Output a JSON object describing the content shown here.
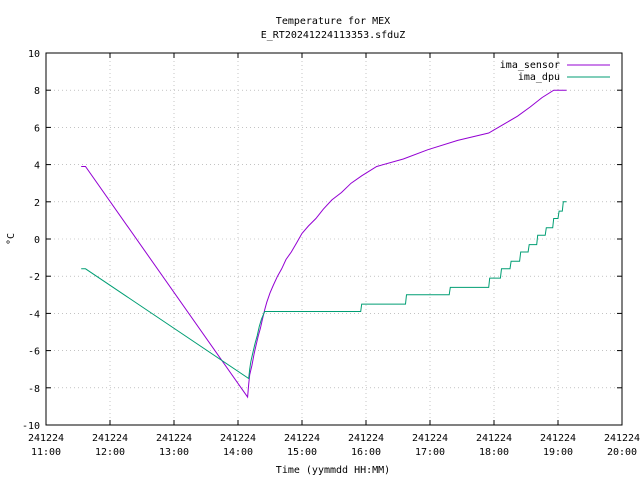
{
  "chart_data": {
    "type": "line",
    "title": "Temperature for MEX",
    "subtitle": "E_RT20241224113353.sfduZ",
    "xlabel": "Time (yymmdd HH:MM)",
    "ylabel": "°C",
    "xlim": [
      "2024-12-24T11:00",
      "2024-12-24T20:00"
    ],
    "ylim": [
      -10,
      10
    ],
    "yticks": [
      -10,
      -8,
      -6,
      -4,
      -2,
      0,
      2,
      4,
      6,
      8,
      10
    ],
    "xticks": [
      {
        "date": "241224",
        "time": "11:00"
      },
      {
        "date": "241224",
        "time": "12:00"
      },
      {
        "date": "241224",
        "time": "13:00"
      },
      {
        "date": "241224",
        "time": "14:00"
      },
      {
        "date": "241224",
        "time": "15:00"
      },
      {
        "date": "241224",
        "time": "16:00"
      },
      {
        "date": "241224",
        "time": "17:00"
      },
      {
        "date": "241224",
        "time": "18:00"
      },
      {
        "date": "241224",
        "time": "19:00"
      },
      {
        "date": "241224",
        "time": "20:00"
      }
    ],
    "grid": true,
    "legend_position": "top-right",
    "series": [
      {
        "name": "ima_sensor",
        "color": "#9400d3",
        "points": [
          [
            "11:33",
            3.9
          ],
          [
            "11:37",
            3.9
          ],
          [
            "14:09",
            -8.5
          ],
          [
            "14:10",
            -7.8
          ],
          [
            "14:11",
            -7.3
          ],
          [
            "14:13",
            -6.8
          ],
          [
            "14:15",
            -6.2
          ],
          [
            "14:17",
            -5.7
          ],
          [
            "14:19",
            -5.2
          ],
          [
            "14:21",
            -4.8
          ],
          [
            "14:23",
            -4.3
          ],
          [
            "14:25",
            -3.8
          ],
          [
            "14:27",
            -3.4
          ],
          [
            "14:30",
            -2.9
          ],
          [
            "14:33",
            -2.5
          ],
          [
            "14:37",
            -2.0
          ],
          [
            "14:41",
            -1.6
          ],
          [
            "14:45",
            -1.1
          ],
          [
            "14:50",
            -0.7
          ],
          [
            "14:55",
            -0.2
          ],
          [
            "15:00",
            0.3
          ],
          [
            "15:06",
            0.7
          ],
          [
            "15:13",
            1.1
          ],
          [
            "15:20",
            1.6
          ],
          [
            "15:28",
            2.1
          ],
          [
            "15:37",
            2.5
          ],
          [
            "15:46",
            3.0
          ],
          [
            "15:56",
            3.4
          ],
          [
            "16:10",
            3.9
          ],
          [
            "16:35",
            4.3
          ],
          [
            "16:58",
            4.8
          ],
          [
            "17:26",
            5.3
          ],
          [
            "17:55",
            5.7
          ],
          [
            "18:10",
            6.2
          ],
          [
            "18:22",
            6.6
          ],
          [
            "18:34",
            7.1
          ],
          [
            "18:45",
            7.6
          ],
          [
            "18:56",
            8.0
          ],
          [
            "19:08",
            8.0
          ]
        ]
      },
      {
        "name": "ima_dpu",
        "color": "#009e73",
        "points": [
          [
            "11:33",
            -1.6
          ],
          [
            "11:37",
            -1.6
          ],
          [
            "14:10",
            -7.5
          ],
          [
            "14:11",
            -7.0
          ],
          [
            "14:12",
            -6.6
          ],
          [
            "14:14",
            -6.1
          ],
          [
            "14:16",
            -5.6
          ],
          [
            "14:18",
            -5.2
          ],
          [
            "14:20",
            -4.7
          ],
          [
            "14:22",
            -4.3
          ],
          [
            "14:25",
            -3.9
          ],
          [
            "15:55",
            -3.9
          ],
          [
            "15:56",
            -3.5
          ],
          [
            "16:37",
            -3.5
          ],
          [
            "16:38",
            -3.0
          ],
          [
            "17:18",
            -3.0
          ],
          [
            "17:19",
            -2.6
          ],
          [
            "17:55",
            -2.6
          ],
          [
            "17:56",
            -2.1
          ],
          [
            "18:06",
            -2.1
          ],
          [
            "18:07",
            -1.6
          ],
          [
            "18:15",
            -1.6
          ],
          [
            "18:16",
            -1.2
          ],
          [
            "18:24",
            -1.2
          ],
          [
            "18:25",
            -0.7
          ],
          [
            "18:32",
            -0.7
          ],
          [
            "18:33",
            -0.3
          ],
          [
            "18:40",
            -0.3
          ],
          [
            "18:41",
            0.2
          ],
          [
            "18:48",
            0.2
          ],
          [
            "18:49",
            0.6
          ],
          [
            "18:55",
            0.6
          ],
          [
            "18:56",
            1.1
          ],
          [
            "19:00",
            1.1
          ],
          [
            "19:01",
            1.5
          ],
          [
            "19:04",
            1.5
          ],
          [
            "19:05",
            2.0
          ],
          [
            "19:08",
            2.0
          ]
        ]
      }
    ]
  }
}
